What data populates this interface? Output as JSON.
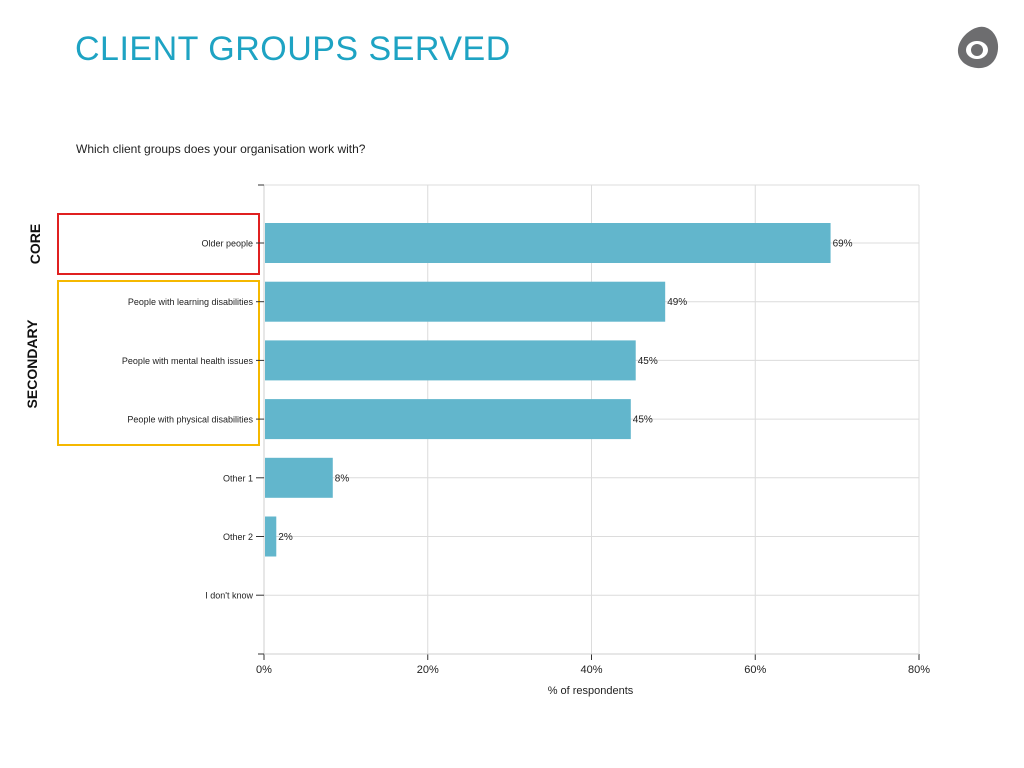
{
  "page": {
    "title": "CLIENT GROUPS SERVED",
    "question": "Which client groups does your organisation work with?",
    "logo": "circle-eye-logo",
    "groups": [
      {
        "label": "CORE",
        "color": "#e02020"
      },
      {
        "label": "SECONDARY",
        "color": "#f5b800"
      }
    ]
  },
  "chart_data": {
    "type": "bar",
    "orientation": "horizontal",
    "categories": [
      "Older people",
      "People with learning disabilities",
      "People with mental health issues",
      "People with physical disabilities",
      "Other 1",
      "Other 2",
      "I don't know"
    ],
    "values": [
      69.2,
      49,
      45.4,
      44.8,
      8.4,
      1.5,
      0
    ],
    "data_labels": [
      "69%",
      "49%",
      "45%",
      "45%",
      "8%",
      "2%",
      ""
    ],
    "xlabel": "% of respondents",
    "xlim": [
      0,
      80
    ],
    "xticks": [
      "0%",
      "20%",
      "40%",
      "60%",
      "80%"
    ],
    "grid": true,
    "bar_color": "#62b6cc"
  }
}
